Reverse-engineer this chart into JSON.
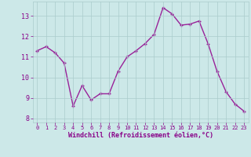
{
  "x": [
    0,
    1,
    2,
    3,
    4,
    5,
    6,
    7,
    8,
    9,
    10,
    11,
    12,
    13,
    14,
    15,
    16,
    17,
    18,
    19,
    20,
    21,
    22,
    23
  ],
  "y": [
    11.3,
    11.5,
    11.2,
    10.7,
    8.6,
    9.6,
    8.9,
    9.2,
    9.2,
    10.3,
    11.0,
    11.3,
    11.65,
    12.1,
    13.4,
    13.1,
    12.55,
    12.6,
    12.75,
    11.65,
    10.3,
    9.3,
    8.7,
    8.35
  ],
  "line_color": "#992299",
  "marker": "+",
  "bg_color": "#cce8e8",
  "grid_color": "#aacccc",
  "xlabel": "Windchill (Refroidissement éolien,°C)",
  "ylim": [
    7.8,
    13.7
  ],
  "yticks": [
    8,
    9,
    10,
    11,
    12,
    13
  ],
  "xticks": [
    0,
    1,
    2,
    3,
    4,
    5,
    6,
    7,
    8,
    9,
    10,
    11,
    12,
    13,
    14,
    15,
    16,
    17,
    18,
    19,
    20,
    21,
    22,
    23
  ],
  "font_color": "#880088",
  "linewidth": 1.0,
  "markersize": 3,
  "markeredgewidth": 1.0
}
